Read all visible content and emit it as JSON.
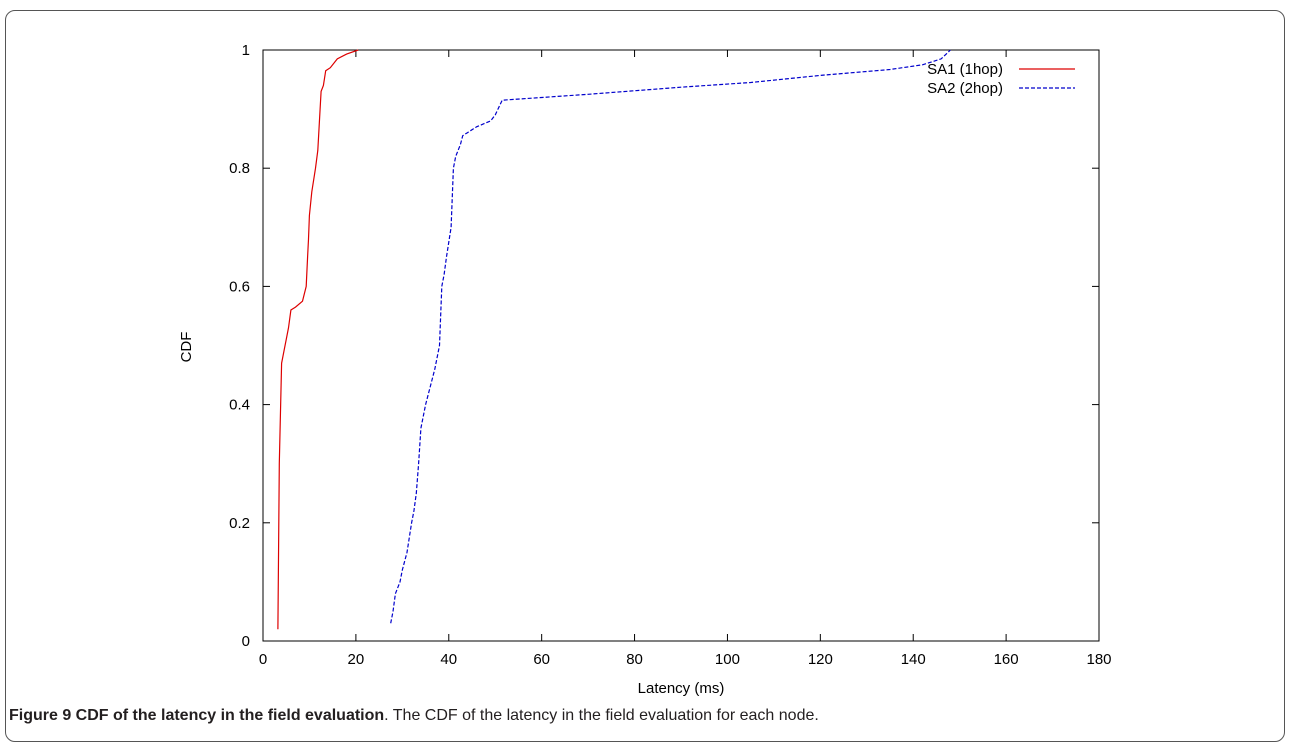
{
  "caption": {
    "label": "Figure 9 CDF of the latency in the field evaluation",
    "text": ". The CDF of the latency in the field evaluation for each node."
  },
  "chart_data": {
    "type": "line",
    "title": "",
    "xlabel": "Latency (ms)",
    "ylabel": "CDF",
    "xlim": [
      0,
      180
    ],
    "ylim": [
      0,
      1
    ],
    "xticks": [
      0,
      20,
      40,
      60,
      80,
      100,
      120,
      140,
      160,
      180
    ],
    "yticks": [
      0,
      0.2,
      0.4,
      0.6,
      0.8,
      1
    ],
    "grid": false,
    "legend_position": "top-right",
    "series": [
      {
        "name": "SA1 (1hop)",
        "color": "#dd0000",
        "dash": "solid",
        "x": [
          3.2,
          3.5,
          4.0,
          4.5,
          5.0,
          5.5,
          6.0,
          7.0,
          8.5,
          9.3,
          9.6,
          9.8,
          10.0,
          10.5,
          11.3,
          11.8,
          12.3,
          12.5,
          13.0,
          13.5,
          14.5,
          16.0,
          18.0,
          20.5
        ],
        "y": [
          0.02,
          0.3,
          0.47,
          0.49,
          0.51,
          0.53,
          0.56,
          0.565,
          0.575,
          0.6,
          0.65,
          0.68,
          0.72,
          0.76,
          0.8,
          0.83,
          0.9,
          0.93,
          0.94,
          0.965,
          0.97,
          0.985,
          0.993,
          1.0
        ]
      },
      {
        "name": "SA2 (2hop)",
        "color": "#0000cc",
        "dash": "dashed",
        "x": [
          27.5,
          28.0,
          28.5,
          29.5,
          30.0,
          31.0,
          32.0,
          32.5,
          33.0,
          33.5,
          34.0,
          35.0,
          36.0,
          37.0,
          38.0,
          38.5,
          39.0,
          39.5,
          40.5,
          41.0,
          41.5,
          42.5,
          43.0,
          44.0,
          46.0,
          49.0,
          50.0,
          51.5,
          70.0,
          90.0,
          105.0,
          120.0,
          135.0,
          142.0,
          146.0,
          148.0
        ],
        "y": [
          0.03,
          0.05,
          0.08,
          0.1,
          0.12,
          0.15,
          0.2,
          0.22,
          0.25,
          0.3,
          0.36,
          0.4,
          0.43,
          0.46,
          0.5,
          0.6,
          0.62,
          0.65,
          0.7,
          0.8,
          0.82,
          0.84,
          0.855,
          0.86,
          0.87,
          0.88,
          0.89,
          0.915,
          0.925,
          0.937,
          0.945,
          0.957,
          0.967,
          0.975,
          0.985,
          1.0
        ]
      }
    ]
  }
}
